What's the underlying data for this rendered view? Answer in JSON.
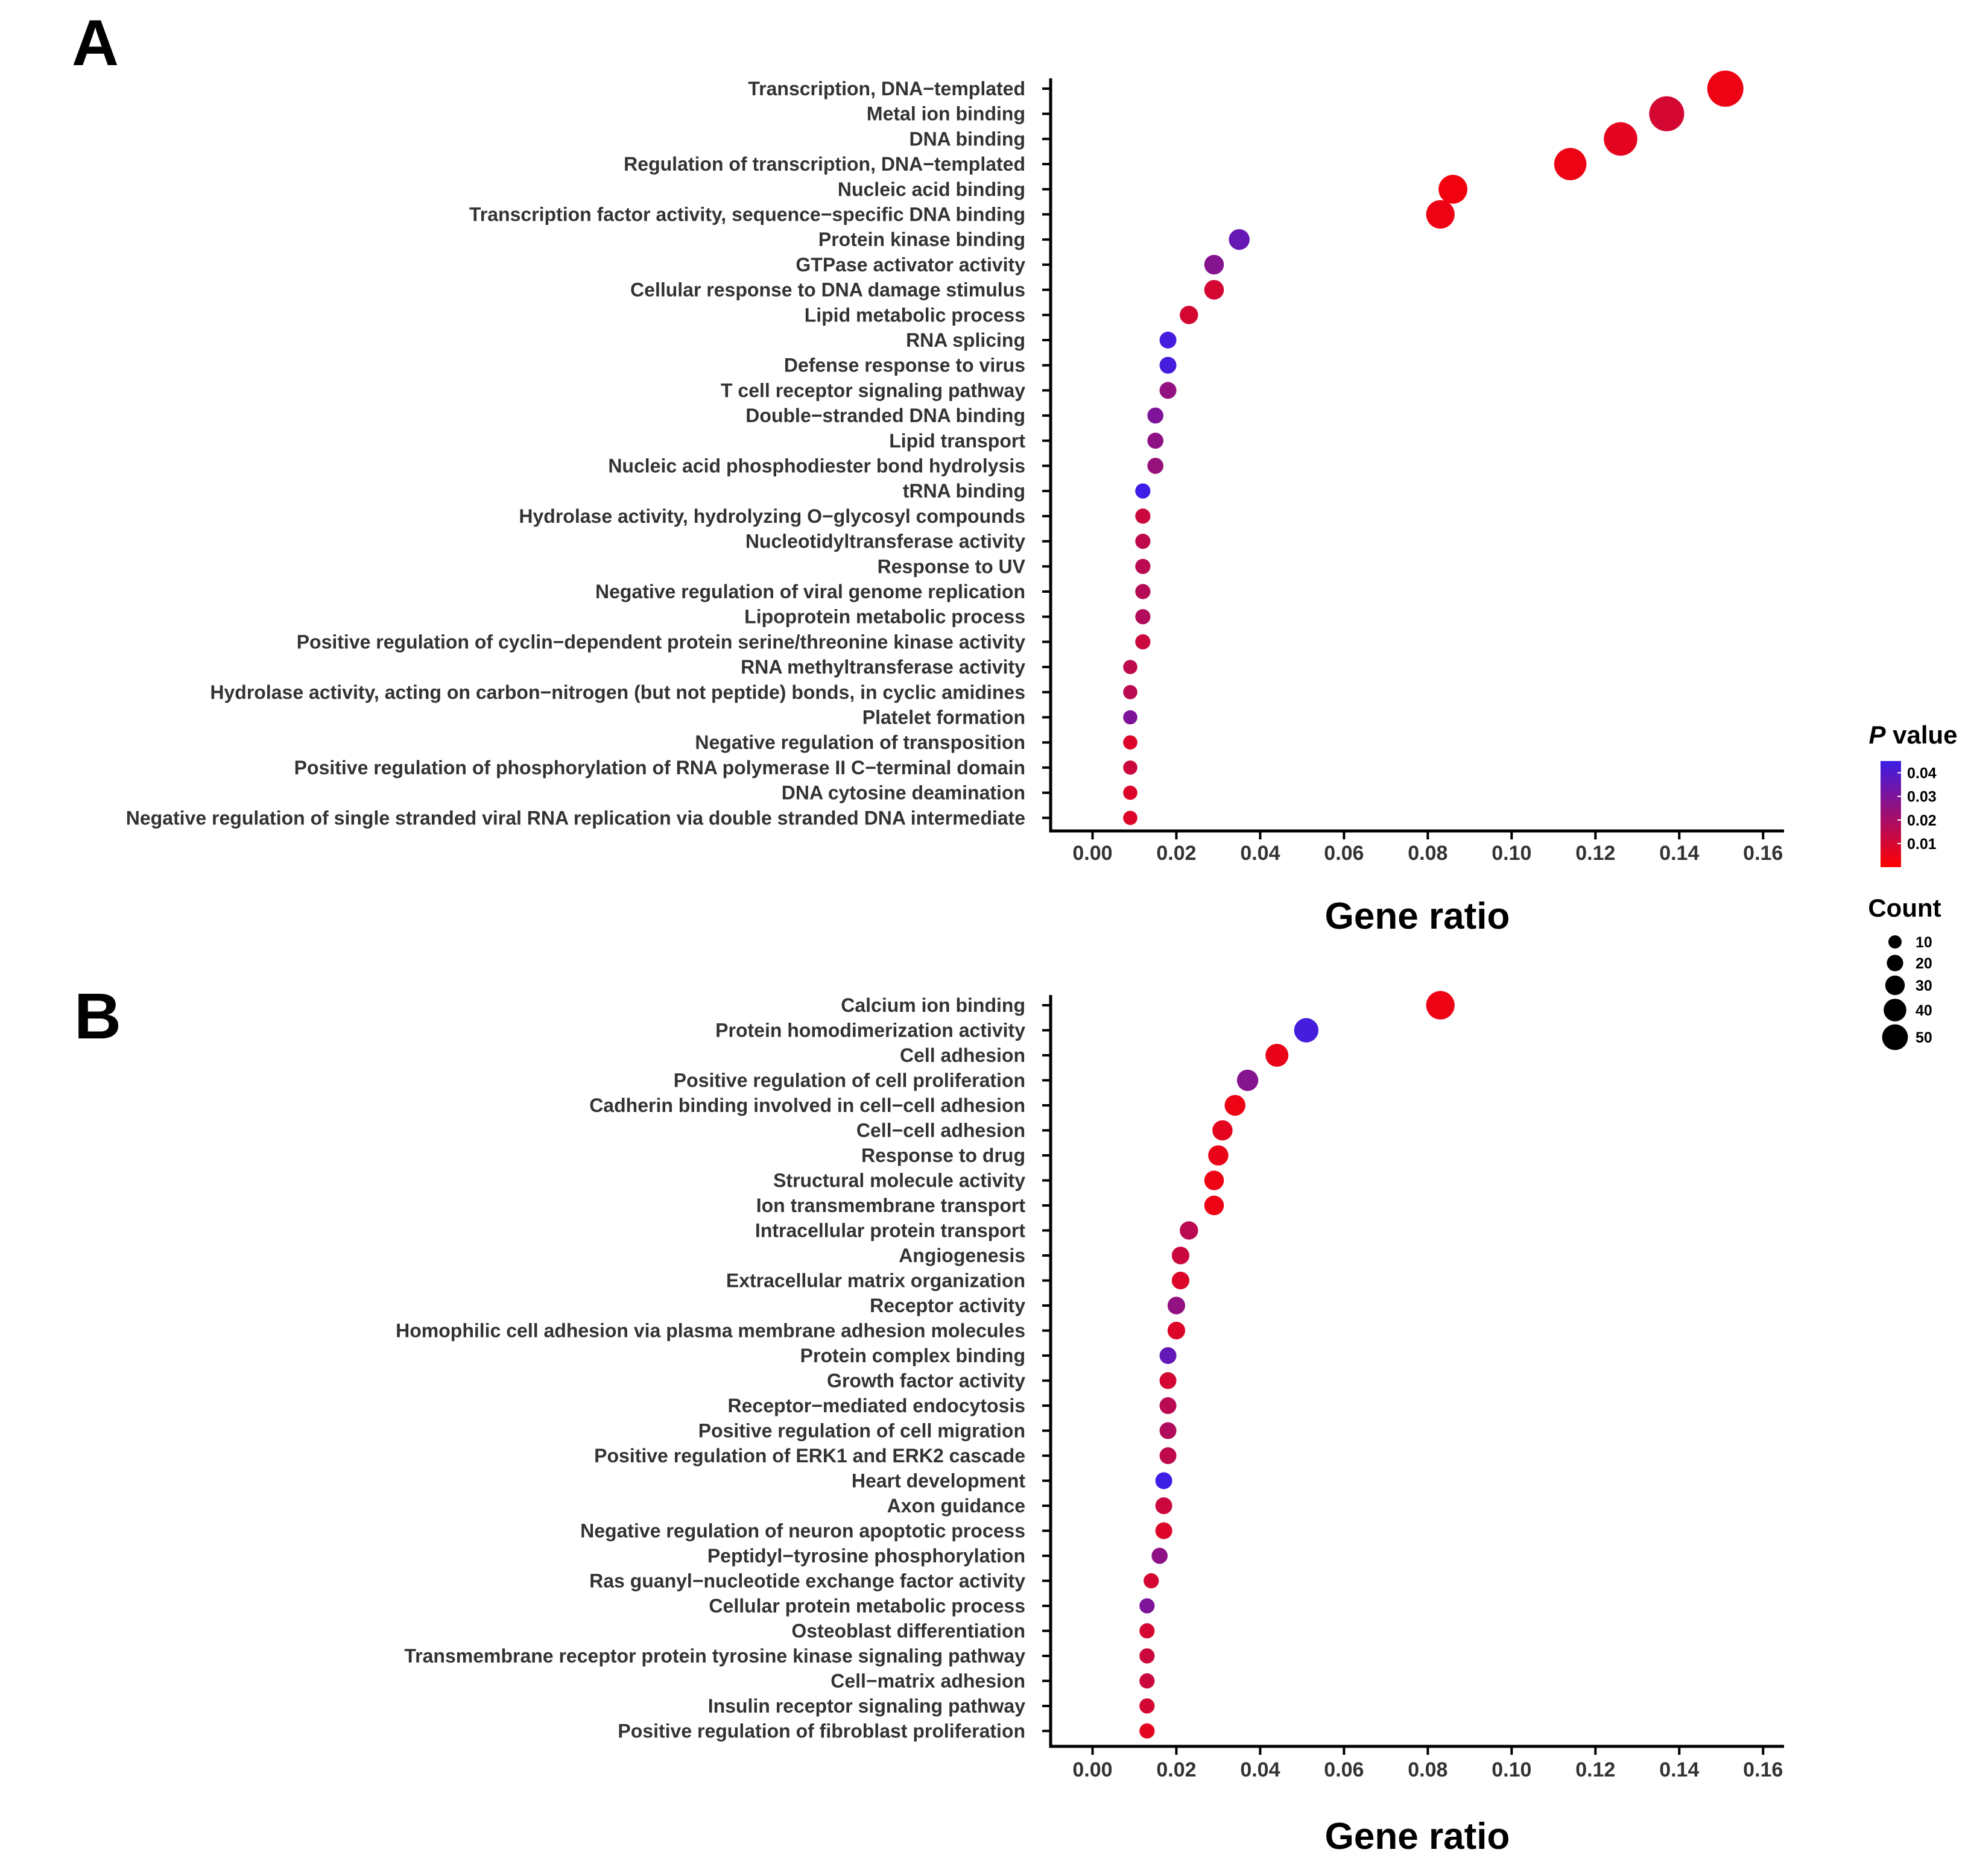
{
  "legend": {
    "pvalue_title_italic": "P",
    "pvalue_title_rest": " value",
    "pvalue_ticks": [
      {
        "label": "0.04",
        "value": 0.04
      },
      {
        "label": "0.03",
        "value": 0.03
      },
      {
        "label": "0.02",
        "value": 0.02
      },
      {
        "label": "0.01",
        "value": 0.01
      }
    ],
    "pvalue_range": [
      0.0,
      0.045
    ],
    "color_low": "#ff0000",
    "color_high": "#3c1ee6",
    "count_title": "Count",
    "count_entries": [
      {
        "label": "10",
        "value": 10
      },
      {
        "label": "20",
        "value": 20
      },
      {
        "label": "30",
        "value": 30
      },
      {
        "label": "40",
        "value": 40
      },
      {
        "label": "50",
        "value": 50
      }
    ]
  },
  "chart_data": [
    {
      "panel": "A",
      "type": "scatter",
      "xlabel": "Gene ratio",
      "xlim": [
        -0.01,
        0.165
      ],
      "xticks": [
        "0.00",
        "0.02",
        "0.04",
        "0.06",
        "0.08",
        "0.10",
        "0.12",
        "0.14",
        "0.16"
      ],
      "points": [
        {
          "term": "Transcription, DNA−templated",
          "x": 0.151,
          "p": 0.004,
          "count": 54
        },
        {
          "term": "Metal ion binding",
          "x": 0.137,
          "p": 0.01,
          "count": 50
        },
        {
          "term": "DNA binding",
          "x": 0.126,
          "p": 0.006,
          "count": 45
        },
        {
          "term": "Regulation of transcription, DNA−templated",
          "x": 0.114,
          "p": 0.004,
          "count": 41
        },
        {
          "term": "Nucleic acid binding",
          "x": 0.086,
          "p": 0.003,
          "count": 31
        },
        {
          "term": "Transcription factor activity, sequence−specific DNA binding",
          "x": 0.083,
          "p": 0.004,
          "count": 30
        },
        {
          "term": "Protein kinase binding",
          "x": 0.035,
          "p": 0.035,
          "count": 13
        },
        {
          "term": "GTPase activator activity",
          "x": 0.029,
          "p": 0.028,
          "count": 11
        },
        {
          "term": "Cellular response to DNA damage stimulus",
          "x": 0.029,
          "p": 0.01,
          "count": 11
        },
        {
          "term": "Lipid metabolic process",
          "x": 0.023,
          "p": 0.01,
          "count": 9
        },
        {
          "term": "RNA splicing",
          "x": 0.018,
          "p": 0.043,
          "count": 7
        },
        {
          "term": "Defense response to virus",
          "x": 0.018,
          "p": 0.043,
          "count": 7
        },
        {
          "term": "T cell receptor signaling pathway",
          "x": 0.018,
          "p": 0.025,
          "count": 7
        },
        {
          "term": "Double−stranded DNA binding",
          "x": 0.015,
          "p": 0.03,
          "count": 6
        },
        {
          "term": "Lipid transport",
          "x": 0.015,
          "p": 0.026,
          "count": 6
        },
        {
          "term": "Nucleic acid phosphodiester bond hydrolysis",
          "x": 0.015,
          "p": 0.024,
          "count": 6
        },
        {
          "term": "tRNA binding",
          "x": 0.012,
          "p": 0.045,
          "count": 5
        },
        {
          "term": "Hydrolase activity, hydrolyzing O−glycosyl compounds",
          "x": 0.012,
          "p": 0.012,
          "count": 5
        },
        {
          "term": "Nucleotidyltransferase activity",
          "x": 0.012,
          "p": 0.015,
          "count": 5
        },
        {
          "term": "Response to UV",
          "x": 0.012,
          "p": 0.016,
          "count": 5
        },
        {
          "term": "Negative regulation of viral genome replication",
          "x": 0.012,
          "p": 0.017,
          "count": 5
        },
        {
          "term": "Lipoprotein metabolic process",
          "x": 0.012,
          "p": 0.018,
          "count": 5
        },
        {
          "term": "Positive regulation of cyclin−dependent protein serine/threonine kinase activity",
          "x": 0.012,
          "p": 0.012,
          "count": 5
        },
        {
          "term": "RNA methyltransferase activity",
          "x": 0.009,
          "p": 0.015,
          "count": 4
        },
        {
          "term": "Hydrolase activity, acting on carbon−nitrogen (but not peptide) bonds, in cyclic amidines",
          "x": 0.009,
          "p": 0.016,
          "count": 4
        },
        {
          "term": "Platelet formation",
          "x": 0.009,
          "p": 0.03,
          "count": 4
        },
        {
          "term": "Negative regulation of transposition",
          "x": 0.009,
          "p": 0.008,
          "count": 4
        },
        {
          "term": "Positive regulation of phosphorylation of RNA polymerase II C−terminal domain",
          "x": 0.009,
          "p": 0.012,
          "count": 4
        },
        {
          "term": "DNA cytosine deamination",
          "x": 0.009,
          "p": 0.008,
          "count": 4
        },
        {
          "term": "Negative regulation of single stranded viral RNA replication via double stranded DNA intermediate",
          "x": 0.009,
          "p": 0.008,
          "count": 4
        }
      ]
    },
    {
      "panel": "B",
      "type": "scatter",
      "xlabel": "Gene ratio",
      "xlim": [
        -0.01,
        0.165
      ],
      "xticks": [
        "0.00",
        "0.02",
        "0.04",
        "0.06",
        "0.08",
        "0.10",
        "0.12",
        "0.14",
        "0.16"
      ],
      "points": [
        {
          "term": "Calcium ion binding",
          "x": 0.083,
          "p": 0.004,
          "count": 30
        },
        {
          "term": "Protein homodimerization activity",
          "x": 0.051,
          "p": 0.043,
          "count": 20
        },
        {
          "term": "Cell adhesion",
          "x": 0.044,
          "p": 0.005,
          "count": 17
        },
        {
          "term": "Positive regulation of cell proliferation",
          "x": 0.037,
          "p": 0.028,
          "count": 14
        },
        {
          "term": "Cadherin binding involved in cell−cell adhesion",
          "x": 0.034,
          "p": 0.004,
          "count": 13
        },
        {
          "term": "Cell−cell adhesion",
          "x": 0.031,
          "p": 0.006,
          "count": 12
        },
        {
          "term": "Response to drug",
          "x": 0.03,
          "p": 0.005,
          "count": 12
        },
        {
          "term": "Structural molecule activity",
          "x": 0.029,
          "p": 0.004,
          "count": 11
        },
        {
          "term": "Ion transmembrane transport",
          "x": 0.029,
          "p": 0.004,
          "count": 11
        },
        {
          "term": "Intracellular protein transport",
          "x": 0.023,
          "p": 0.016,
          "count": 9
        },
        {
          "term": "Angiogenesis",
          "x": 0.021,
          "p": 0.012,
          "count": 8
        },
        {
          "term": "Extracellular matrix organization",
          "x": 0.021,
          "p": 0.008,
          "count": 8
        },
        {
          "term": "Receptor activity",
          "x": 0.02,
          "p": 0.025,
          "count": 8
        },
        {
          "term": "Homophilic cell adhesion via plasma membrane adhesion molecules",
          "x": 0.02,
          "p": 0.008,
          "count": 8
        },
        {
          "term": "Protein complex binding",
          "x": 0.018,
          "p": 0.036,
          "count": 7
        },
        {
          "term": "Growth factor activity",
          "x": 0.018,
          "p": 0.01,
          "count": 7
        },
        {
          "term": "Receptor−mediated endocytosis",
          "x": 0.018,
          "p": 0.016,
          "count": 7
        },
        {
          "term": "Positive regulation of cell migration",
          "x": 0.018,
          "p": 0.018,
          "count": 7
        },
        {
          "term": "Positive regulation of ERK1 and ERK2 cascade",
          "x": 0.018,
          "p": 0.015,
          "count": 7
        },
        {
          "term": "Heart development",
          "x": 0.017,
          "p": 0.045,
          "count": 7
        },
        {
          "term": "Axon guidance",
          "x": 0.017,
          "p": 0.012,
          "count": 7
        },
        {
          "term": "Negative regulation of neuron apoptotic process",
          "x": 0.017,
          "p": 0.008,
          "count": 7
        },
        {
          "term": "Peptidyl−tyrosine phosphorylation",
          "x": 0.016,
          "p": 0.026,
          "count": 6
        },
        {
          "term": "Ras guanyl−nucleotide exchange factor activity",
          "x": 0.014,
          "p": 0.01,
          "count": 5
        },
        {
          "term": "Cellular protein metabolic process",
          "x": 0.013,
          "p": 0.03,
          "count": 5
        },
        {
          "term": "Osteoblast differentiation",
          "x": 0.013,
          "p": 0.01,
          "count": 5
        },
        {
          "term": "Transmembrane receptor protein tyrosine kinase signaling pathway",
          "x": 0.013,
          "p": 0.012,
          "count": 5
        },
        {
          "term": "Cell−matrix adhesion",
          "x": 0.013,
          "p": 0.012,
          "count": 5
        },
        {
          "term": "Insulin receptor signaling pathway",
          "x": 0.013,
          "p": 0.01,
          "count": 5
        },
        {
          "term": "Positive regulation of fibroblast proliferation",
          "x": 0.013,
          "p": 0.006,
          "count": 5
        }
      ]
    }
  ]
}
